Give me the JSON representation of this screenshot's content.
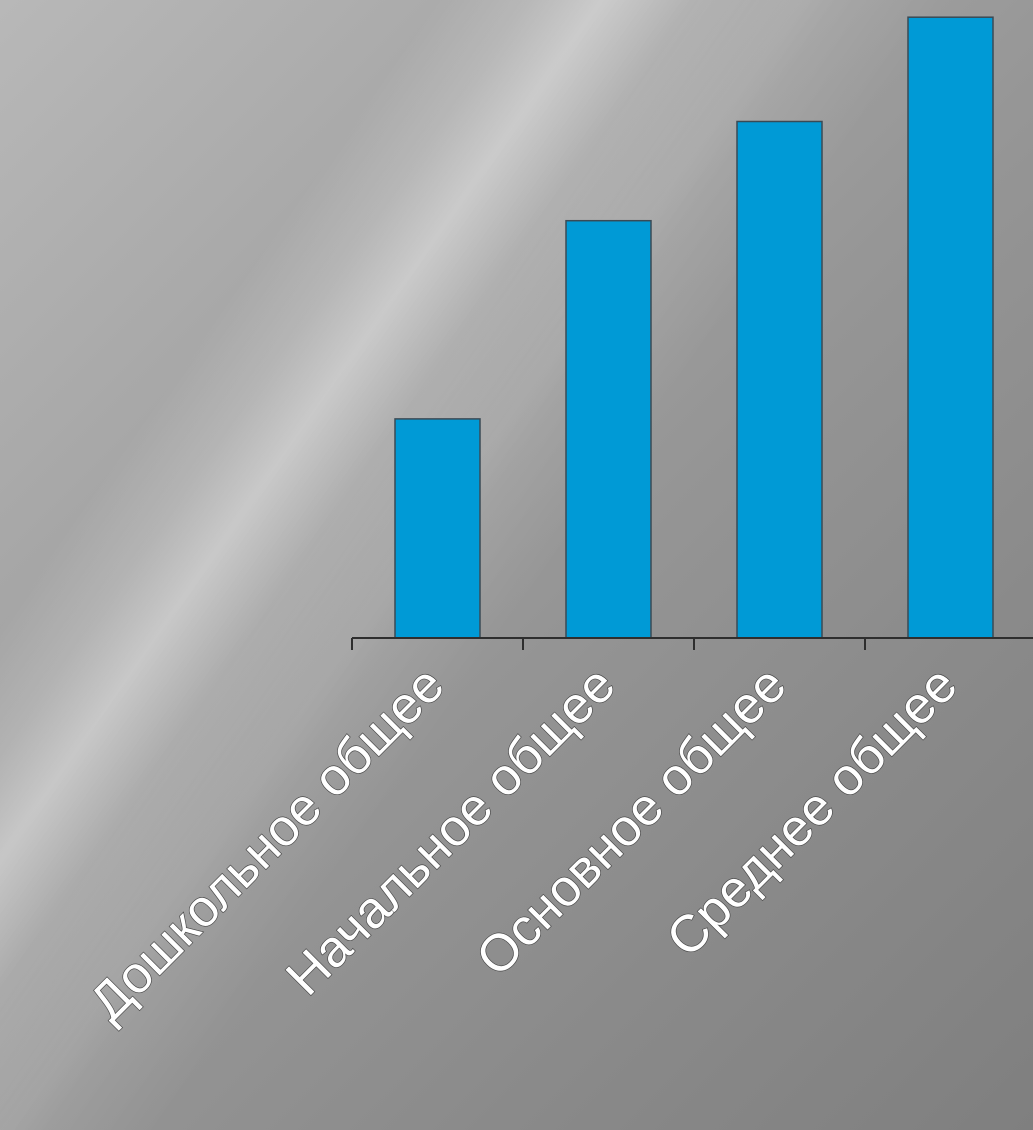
{
  "chart_data": {
    "type": "bar",
    "categories": [
      "Дошкольное общее",
      "Начальное общее",
      "Основное общее",
      "Среднее общее"
    ],
    "values": [
      2.1,
      4.0,
      4.95,
      5.95
    ],
    "ylim": [
      0,
      6.0
    ],
    "grid": false,
    "legend": "none",
    "colors": {
      "bar": "#009ad6",
      "axis": "#2e2e2e",
      "label": "#ffffff"
    }
  }
}
